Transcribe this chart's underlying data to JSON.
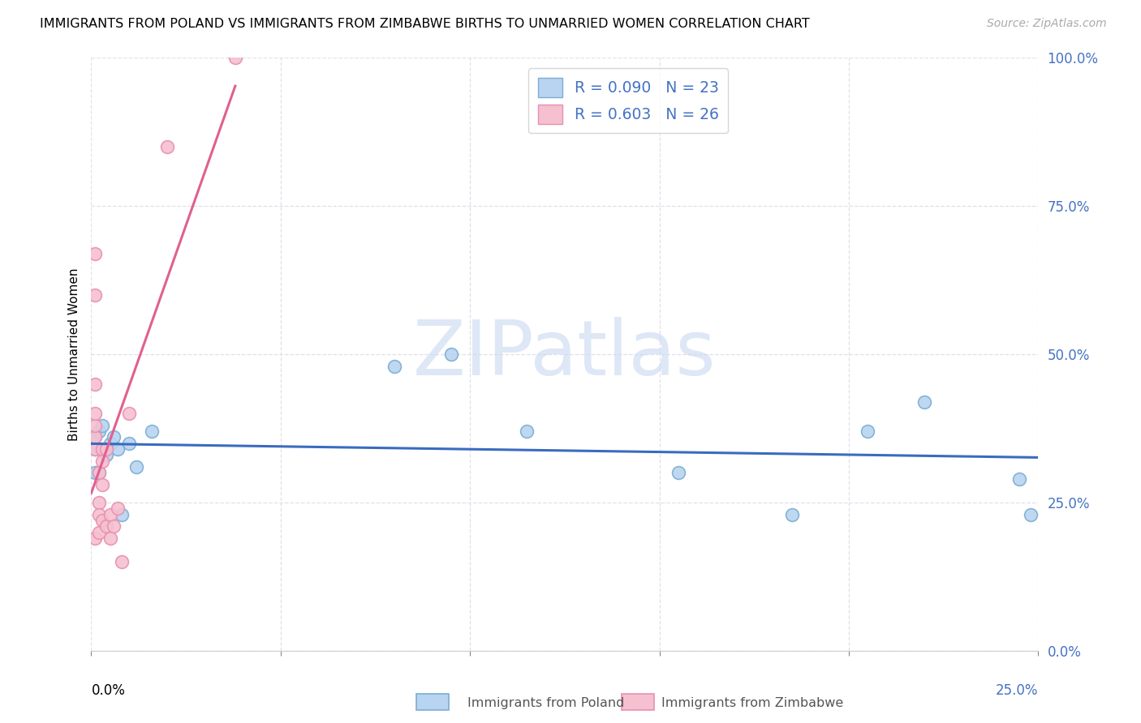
{
  "title": "IMMIGRANTS FROM POLAND VS IMMIGRANTS FROM ZIMBABWE BIRTHS TO UNMARRIED WOMEN CORRELATION CHART",
  "source": "Source: ZipAtlas.com",
  "ylabel": "Births to Unmarried Women",
  "xlim": [
    0,
    0.25
  ],
  "ylim": [
    0,
    1.0
  ],
  "ytick_vals": [
    0.0,
    0.25,
    0.5,
    0.75,
    1.0
  ],
  "xtick_vals": [
    0.0,
    0.05,
    0.1,
    0.15,
    0.2,
    0.25
  ],
  "legend_r1": "R = 0.090",
  "legend_n1": "N = 23",
  "legend_r2": "R = 0.603",
  "legend_n2": "N = 26",
  "color_poland_fill": "#b8d4f0",
  "color_poland_edge": "#7badd4",
  "color_zimbabwe_fill": "#f5c0d0",
  "color_zimbabwe_edge": "#e890b0",
  "color_trend_poland": "#3a6bbf",
  "color_trend_zimbabwe": "#e06090",
  "color_right_tick": "#4472c4",
  "color_grid": "#e0e0ea",
  "watermark": "ZIPatlas",
  "watermark_color": "#c8d8f0",
  "bottom_legend_label1": "Immigrants from Poland",
  "bottom_legend_label2": "Immigrants from Zimbabwe",
  "poland_x": [
    0.001,
    0.001,
    0.001,
    0.002,
    0.002,
    0.003,
    0.004,
    0.005,
    0.006,
    0.007,
    0.008,
    0.01,
    0.012,
    0.016,
    0.08,
    0.095,
    0.115,
    0.155,
    0.185,
    0.205,
    0.22,
    0.245,
    0.248
  ],
  "poland_y": [
    0.34,
    0.36,
    0.3,
    0.3,
    0.37,
    0.38,
    0.33,
    0.35,
    0.36,
    0.34,
    0.23,
    0.35,
    0.31,
    0.37,
    0.48,
    0.5,
    0.37,
    0.3,
    0.23,
    0.37,
    0.42,
    0.29,
    0.23
  ],
  "zimbabwe_x": [
    0.001,
    0.001,
    0.001,
    0.001,
    0.001,
    0.001,
    0.001,
    0.001,
    0.002,
    0.002,
    0.002,
    0.002,
    0.003,
    0.003,
    0.003,
    0.003,
    0.004,
    0.004,
    0.005,
    0.005,
    0.006,
    0.007,
    0.008,
    0.01,
    0.02,
    0.038
  ],
  "zimbabwe_y": [
    0.34,
    0.36,
    0.38,
    0.4,
    0.45,
    0.6,
    0.67,
    0.19,
    0.2,
    0.25,
    0.3,
    0.23,
    0.22,
    0.28,
    0.34,
    0.32,
    0.21,
    0.34,
    0.19,
    0.23,
    0.21,
    0.24,
    0.15,
    0.4,
    0.85,
    1.0
  ]
}
